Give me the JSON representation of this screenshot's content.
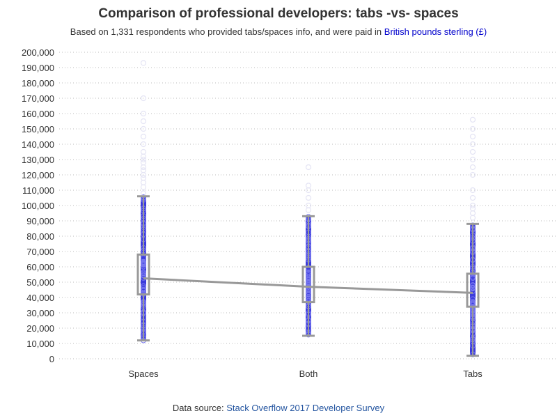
{
  "chart_data": {
    "type": "box",
    "title": "Comparison of professional developers: tabs -vs- spaces",
    "subtitle_prefix": "Based on 1,331 respondents who provided tabs/spaces info, and were paid in ",
    "subtitle_highlight": "British pounds sterling (£)",
    "source_prefix": "Data source: ",
    "source_highlight": "Stack Overflow 2017 Developer Survey",
    "xlabel": "",
    "ylabel": "",
    "ylim": [
      0,
      200000
    ],
    "yticks": [
      0,
      10000,
      20000,
      30000,
      40000,
      50000,
      60000,
      70000,
      80000,
      90000,
      100000,
      110000,
      120000,
      130000,
      140000,
      150000,
      160000,
      170000,
      180000,
      190000,
      200000
    ],
    "ytick_labels": [
      "0",
      "10,000",
      "20,000",
      "30,000",
      "40,000",
      "50,000",
      "60,000",
      "70,000",
      "80,000",
      "90,000",
      "100,000",
      "110,000",
      "120,000",
      "130,000",
      "140,000",
      "150,000",
      "160,000",
      "170,000",
      "180,000",
      "190,000",
      "200,000"
    ],
    "grid": "horizontal dotted",
    "categories": [
      "Spaces",
      "Both",
      "Tabs"
    ],
    "boxes": [
      {
        "category": "Spaces",
        "whisker_low": 12000,
        "q1": 42000,
        "mean": 52500,
        "q3": 68000,
        "whisker_high": 106000
      },
      {
        "category": "Both",
        "whisker_low": 15000,
        "q1": 37000,
        "mean": 47000,
        "q3": 60000,
        "whisker_high": 93000
      },
      {
        "category": "Tabs",
        "whisker_low": 2000,
        "q1": 34000,
        "mean": 43000,
        "q3": 55500,
        "whisker_high": 88000
      }
    ],
    "outliers": [
      {
        "category": "Spaces",
        "values": [
          108000,
          112000,
          115000,
          118000,
          120000,
          123000,
          125000,
          128000,
          130000,
          132000,
          135000,
          140000,
          145000,
          150000,
          155000,
          160000,
          170000,
          193000
        ]
      },
      {
        "category": "Both",
        "values": [
          97000,
          100000,
          105000,
          110000,
          113000,
          125000
        ]
      },
      {
        "category": "Tabs",
        "values": [
          92000,
          95000,
          98000,
          100000,
          105000,
          110000,
          120000,
          125000,
          130000,
          135000,
          140000,
          145000,
          150000,
          156000
        ]
      }
    ],
    "colors": {
      "points": "#1a1ad6",
      "points_light": "#e4e4f4",
      "box": "#999999",
      "mean_line": "#999999",
      "grid": "#bbbbbb"
    }
  }
}
